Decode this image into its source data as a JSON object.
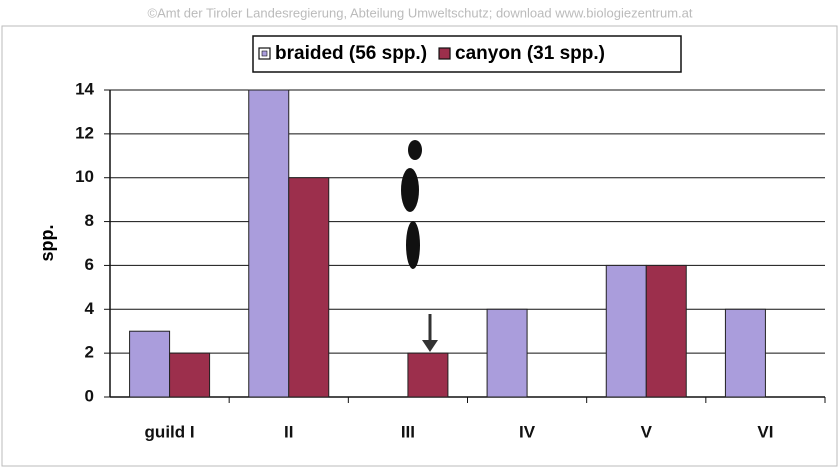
{
  "chart_data": {
    "type": "bar",
    "watermark": "©Amt der Tiroler Landesregierung, Abteilung Umweltschutz; download www.biologiezentrum.at",
    "ylabel": "spp.",
    "categories": [
      "guild I",
      "II",
      "III",
      "IV",
      "V",
      "VI"
    ],
    "series": [
      {
        "name": "braided (56 spp.)",
        "color": "#aa9ddc",
        "values": [
          3,
          14,
          0,
          4,
          6,
          4
        ]
      },
      {
        "name": "canyon (31 spp.)",
        "color": "#9c2f4c",
        "values": [
          2,
          10,
          2,
          0,
          6,
          0
        ]
      }
    ],
    "ylim": [
      0,
      14
    ],
    "yticks": [
      0,
      2,
      4,
      6,
      8,
      10,
      12,
      14
    ],
    "grid": true
  }
}
